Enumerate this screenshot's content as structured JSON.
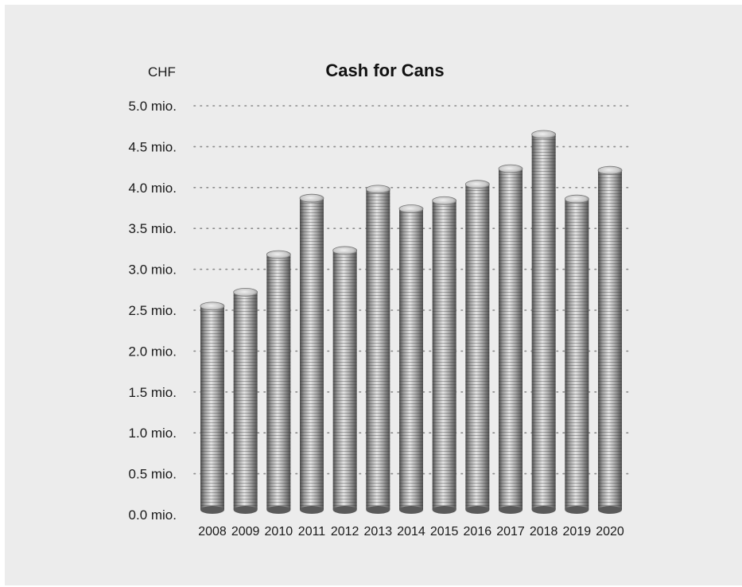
{
  "chart_data": {
    "type": "bar",
    "title": "Cash for Cans",
    "unit_label": "CHF",
    "categories": [
      "2008",
      "2009",
      "2010",
      "2011",
      "2012",
      "2013",
      "2014",
      "2015",
      "2016",
      "2017",
      "2018",
      "2019",
      "2020"
    ],
    "values": [
      2.55,
      2.72,
      3.18,
      3.87,
      3.23,
      3.98,
      3.74,
      3.84,
      4.04,
      4.23,
      4.65,
      3.86,
      4.21
    ],
    "y_tick_labels": [
      "0.0 mio.",
      "0.5 mio.",
      "1.0 mio.",
      "1.5 mio.",
      "2.0 mio.",
      "2.5 mio.",
      "3.0 mio.",
      "3.5 mio.",
      "4.0 mio.",
      "4.5 mio.",
      "5.0 mio."
    ],
    "ylim": [
      0,
      5
    ],
    "grid": true,
    "colors": {
      "background": "#ececec",
      "coin_dark": "#5a5a5a",
      "coin_light": "#e2e2e2",
      "grid": "#8a8a8a"
    }
  }
}
